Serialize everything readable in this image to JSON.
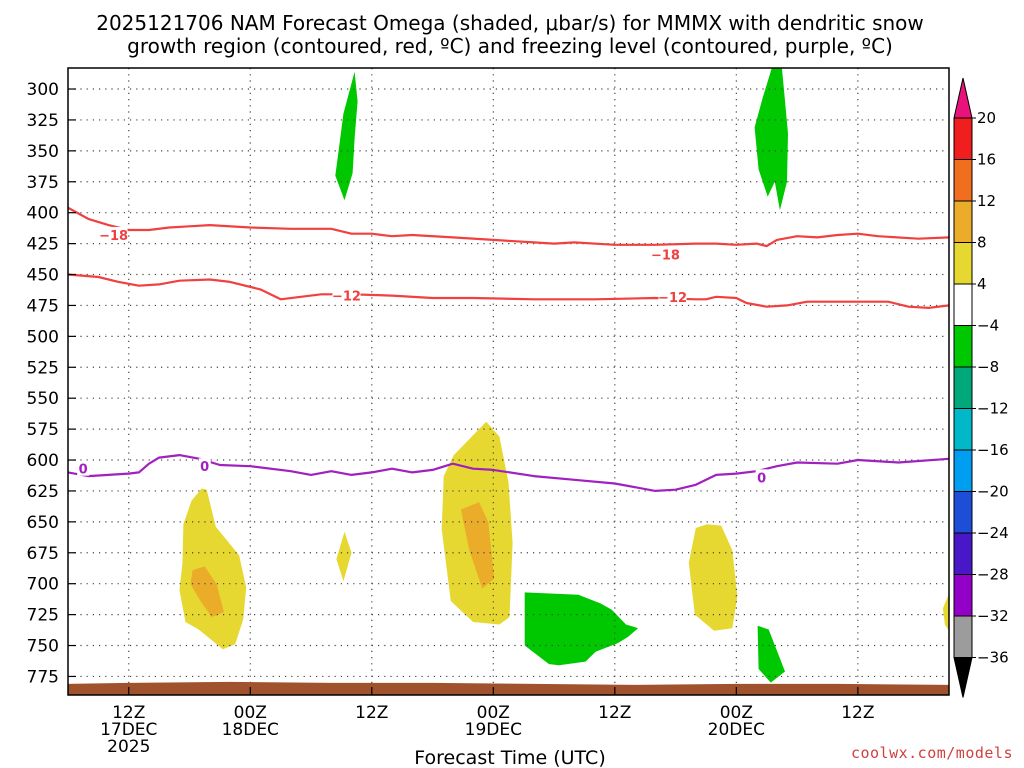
{
  "chart_data": {
    "type": "contour",
    "title_lines": [
      "2025121706 NAM Forecast Omega (shaded, μbar/s) for MMMX with dendritic snow",
      "growth region (contoured, red, ºC) and freezing level (contoured, purple, ºC)"
    ],
    "xlabel": "Forecast Time (UTC)",
    "credit": "coolwx.com/models",
    "x_range_hours": [
      -6,
      81
    ],
    "x_ticks": [
      {
        "h": 0,
        "lines": [
          "12Z",
          "17DEC",
          "2025"
        ]
      },
      {
        "h": 12,
        "lines": [
          "00Z",
          "18DEC"
        ]
      },
      {
        "h": 24,
        "lines": [
          "12Z"
        ]
      },
      {
        "h": 36,
        "lines": [
          "00Z",
          "19DEC"
        ]
      },
      {
        "h": 48,
        "lines": [
          "12Z"
        ]
      },
      {
        "h": 60,
        "lines": [
          "00Z",
          "20DEC"
        ]
      },
      {
        "h": 72,
        "lines": [
          "12Z"
        ]
      }
    ],
    "y_range_hpa": [
      790,
      283
    ],
    "y_ticks": [
      300,
      325,
      350,
      375,
      400,
      425,
      450,
      475,
      500,
      525,
      550,
      575,
      600,
      625,
      650,
      675,
      700,
      725,
      750,
      775
    ],
    "colorbar": {
      "labels": [
        "20",
        "16",
        "12",
        "8",
        "4",
        "−4",
        "−8",
        "−12",
        "−16",
        "−20",
        "−24",
        "−28",
        "−32",
        "−36"
      ],
      "top_color": "#e8127a",
      "bottom_color": "#000000",
      "bands": [
        "#f01e1e",
        "#f06e1e",
        "#ebac2a",
        "#e6d831",
        "#ffffff",
        "#00c800",
        "#00a87a",
        "#00b8c8",
        "#009ef0",
        "#1e4ed8",
        "#4818c8",
        "#9300c8",
        "#9c9c9c"
      ]
    },
    "contours": [
      {
        "name": "dgz-top",
        "label": "−18",
        "color": "#f04040",
        "label_at": [
          [
            -1.5,
            418
          ],
          [
            53,
            434
          ]
        ],
        "points": [
          [
            -6,
            396
          ],
          [
            -4,
            405
          ],
          [
            -2,
            410
          ],
          [
            0,
            414
          ],
          [
            2,
            414
          ],
          [
            4,
            412
          ],
          [
            6,
            411
          ],
          [
            8,
            410
          ],
          [
            12,
            412
          ],
          [
            16,
            413
          ],
          [
            20,
            413
          ],
          [
            22,
            417
          ],
          [
            24,
            417
          ],
          [
            26,
            419
          ],
          [
            28,
            418
          ],
          [
            32,
            420
          ],
          [
            36,
            422
          ],
          [
            40,
            424
          ],
          [
            42,
            425
          ],
          [
            44,
            424
          ],
          [
            48,
            426
          ],
          [
            52,
            426
          ],
          [
            56,
            425
          ],
          [
            58,
            425
          ],
          [
            60,
            426
          ],
          [
            62,
            425
          ],
          [
            63,
            427
          ],
          [
            64,
            422
          ],
          [
            66,
            419
          ],
          [
            68,
            420
          ],
          [
            70,
            418
          ],
          [
            72,
            417
          ],
          [
            74,
            419
          ],
          [
            78,
            421
          ],
          [
            81,
            420
          ]
        ]
      },
      {
        "name": "dgz-bottom",
        "label": "−12",
        "color": "#f04040",
        "label_at": [
          [
            -9.5,
            453
          ],
          [
            21.5,
            467
          ],
          [
            53.7,
            468
          ]
        ],
        "points": [
          [
            -6,
            450
          ],
          [
            -3,
            452
          ],
          [
            -1,
            456
          ],
          [
            1,
            459
          ],
          [
            3,
            458
          ],
          [
            5,
            455
          ],
          [
            8,
            454
          ],
          [
            10,
            456
          ],
          [
            13,
            462
          ],
          [
            15,
            470
          ],
          [
            17,
            468
          ],
          [
            19,
            466
          ],
          [
            22,
            466
          ],
          [
            26,
            467
          ],
          [
            30,
            469
          ],
          [
            34,
            469
          ],
          [
            40,
            470
          ],
          [
            46,
            470
          ],
          [
            52,
            469
          ],
          [
            56,
            470
          ],
          [
            57,
            470
          ],
          [
            58,
            468
          ],
          [
            60,
            469
          ],
          [
            61,
            473
          ],
          [
            63,
            476
          ],
          [
            65,
            475
          ],
          [
            67,
            472
          ],
          [
            71,
            472
          ],
          [
            75,
            472
          ],
          [
            77,
            476
          ],
          [
            79,
            477
          ],
          [
            81,
            475
          ]
        ]
      },
      {
        "name": "freezing-level",
        "label": "0",
        "color": "#a020c0",
        "label_at": [
          [
            -4.5,
            607
          ],
          [
            7.5,
            605
          ],
          [
            62.5,
            614
          ]
        ],
        "points": [
          [
            -6,
            610
          ],
          [
            -4,
            613
          ],
          [
            -2,
            612
          ],
          [
            0,
            611
          ],
          [
            1,
            610
          ],
          [
            2,
            603
          ],
          [
            3,
            598
          ],
          [
            5,
            596
          ],
          [
            7,
            599
          ],
          [
            9,
            604
          ],
          [
            12,
            605
          ],
          [
            16,
            609
          ],
          [
            18,
            612
          ],
          [
            20,
            609
          ],
          [
            22,
            612
          ],
          [
            24,
            610
          ],
          [
            26,
            607
          ],
          [
            28,
            610
          ],
          [
            30,
            608
          ],
          [
            32,
            603
          ],
          [
            34,
            607
          ],
          [
            36,
            608
          ],
          [
            40,
            613
          ],
          [
            44,
            616
          ],
          [
            48,
            619
          ],
          [
            52,
            625
          ],
          [
            54,
            624
          ],
          [
            56,
            620
          ],
          [
            58,
            612
          ],
          [
            60,
            611
          ],
          [
            62,
            609
          ],
          [
            64,
            605
          ],
          [
            66,
            602
          ],
          [
            70,
            603
          ],
          [
            72,
            600
          ],
          [
            76,
            602
          ],
          [
            81,
            599
          ]
        ]
      }
    ],
    "omega_regions": [
      {
        "value": 5,
        "color": "#e6d831",
        "points": [
          [
            7.2,
            623
          ],
          [
            6.2,
            633
          ],
          [
            5.4,
            652
          ],
          [
            5.3,
            684
          ],
          [
            5,
            705
          ],
          [
            5.6,
            731
          ],
          [
            6.9,
            737
          ],
          [
            9.3,
            753
          ],
          [
            10.5,
            749
          ],
          [
            11.3,
            729
          ],
          [
            11.6,
            703
          ],
          [
            10.9,
            677
          ],
          [
            8.6,
            654
          ],
          [
            7.7,
            624
          ]
        ]
      },
      {
        "value": 9,
        "color": "#ebac2a",
        "points": [
          [
            6.3,
            689
          ],
          [
            6.1,
            700
          ],
          [
            7,
            713
          ],
          [
            8.2,
            727
          ],
          [
            9.4,
            723
          ],
          [
            8.7,
            701
          ],
          [
            7.5,
            686
          ]
        ]
      },
      {
        "value": 5,
        "color": "#e6d831",
        "points": [
          [
            21.3,
            658
          ],
          [
            20.5,
            680
          ],
          [
            21.2,
            698
          ],
          [
            22,
            675
          ]
        ]
      },
      {
        "value": 5,
        "color": "#e6d831",
        "points": [
          [
            32.1,
            596
          ],
          [
            31.1,
            613
          ],
          [
            30.9,
            656
          ],
          [
            31.8,
            714
          ],
          [
            34,
            731
          ],
          [
            36.6,
            733
          ],
          [
            37.6,
            727
          ],
          [
            37.9,
            667
          ],
          [
            37.5,
            618
          ],
          [
            36.6,
            581
          ],
          [
            35.3,
            569
          ]
        ]
      },
      {
        "value": 9,
        "color": "#ebac2a",
        "points": [
          [
            32.8,
            640
          ],
          [
            33.6,
            672
          ],
          [
            34.9,
            704
          ],
          [
            36.1,
            696
          ],
          [
            35.5,
            650
          ],
          [
            34.6,
            634
          ]
        ]
      },
      {
        "value": 5,
        "color": "#e6d831",
        "points": [
          [
            56,
            655
          ],
          [
            55.3,
            683
          ],
          [
            55.9,
            725
          ],
          [
            57.8,
            738
          ],
          [
            59.6,
            736
          ],
          [
            60.1,
            710
          ],
          [
            59.6,
            673
          ],
          [
            58.5,
            653
          ],
          [
            57.1,
            652
          ]
        ]
      },
      {
        "value": 5,
        "color": "#e6d831",
        "points": [
          [
            81,
            708
          ],
          [
            80.4,
            720
          ],
          [
            80.6,
            733
          ],
          [
            81,
            738
          ]
        ]
      },
      {
        "value": -6,
        "color": "#00c800",
        "points": [
          [
            22.3,
            286
          ],
          [
            21.2,
            320
          ],
          [
            20.8,
            345
          ],
          [
            20.4,
            370
          ],
          [
            21.3,
            390
          ],
          [
            22.1,
            368
          ],
          [
            22.3,
            340
          ],
          [
            22.6,
            310
          ]
        ]
      },
      {
        "value": -6,
        "color": "#00c800",
        "points": [
          [
            63.5,
            283
          ],
          [
            62.6,
            307
          ],
          [
            61.8,
            331
          ],
          [
            62.2,
            365
          ],
          [
            63.1,
            387
          ],
          [
            63.8,
            375
          ],
          [
            64.3,
            398
          ],
          [
            65,
            375
          ],
          [
            65.1,
            336
          ],
          [
            64.7,
            300
          ],
          [
            64.5,
            283
          ]
        ]
      },
      {
        "value": -6,
        "color": "#00c800",
        "points": [
          [
            39.1,
            707
          ],
          [
            39.1,
            750
          ],
          [
            41.5,
            765
          ],
          [
            42.5,
            766
          ],
          [
            45.1,
            763
          ],
          [
            46.1,
            755
          ],
          [
            48.3,
            748
          ],
          [
            49.3,
            743
          ],
          [
            50.3,
            736
          ],
          [
            49.1,
            733
          ],
          [
            47.7,
            721
          ],
          [
            46.6,
            716
          ],
          [
            44.4,
            709
          ]
        ]
      },
      {
        "value": -6,
        "color": "#00c800",
        "points": [
          [
            62.1,
            734
          ],
          [
            62.2,
            769
          ],
          [
            63.4,
            780
          ],
          [
            64.8,
            771
          ],
          [
            63.2,
            737
          ]
        ]
      }
    ],
    "terrain": {
      "color": "#a0522d",
      "top_hpa": 781
    }
  }
}
